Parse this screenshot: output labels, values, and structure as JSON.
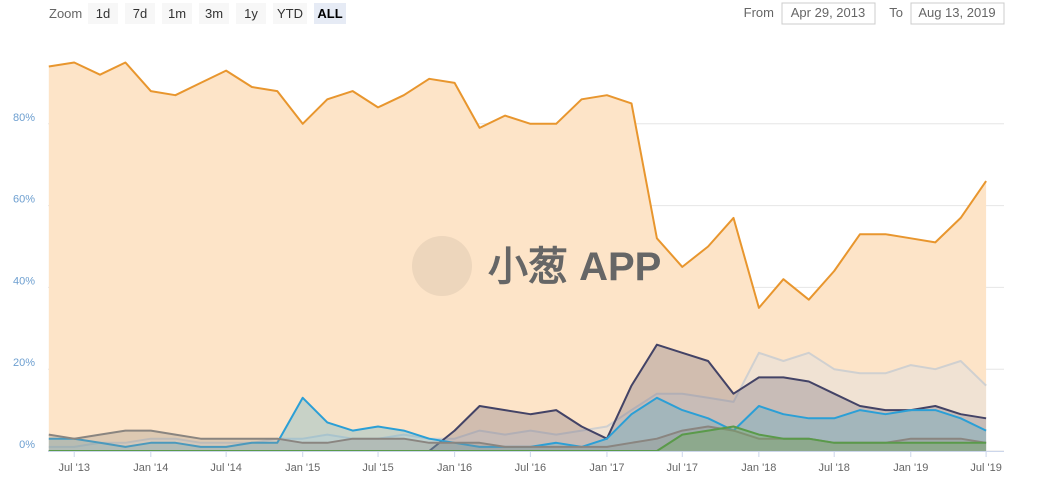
{
  "range_selector": {
    "zoom_label": "Zoom",
    "buttons": [
      "1d",
      "7d",
      "1m",
      "3m",
      "1y",
      "YTD",
      "ALL"
    ],
    "selected": 6,
    "from_label": "From",
    "from_value": "Apr 29, 2013",
    "to_label": "To",
    "to_value": "Aug 13, 2019"
  },
  "watermark": "小葱 APP",
  "chart_data": {
    "type": "area",
    "xlim": [
      "2013-04-29",
      "2019-08-13"
    ],
    "ylim": [
      0,
      100
    ],
    "yticks": [
      {
        "value": 0,
        "label": "0%"
      },
      {
        "value": 20,
        "label": "20%"
      },
      {
        "value": 40,
        "label": "40%"
      },
      {
        "value": 60,
        "label": "60%"
      },
      {
        "value": 80,
        "label": "80%"
      }
    ],
    "xticks": [
      {
        "value": "2013-07-01",
        "label": "Jul '13"
      },
      {
        "value": "2014-01-01",
        "label": "Jan '14"
      },
      {
        "value": "2014-07-01",
        "label": "Jul '14"
      },
      {
        "value": "2015-01-01",
        "label": "Jan '15"
      },
      {
        "value": "2015-07-01",
        "label": "Jul '15"
      },
      {
        "value": "2016-01-01",
        "label": "Jan '16"
      },
      {
        "value": "2016-07-01",
        "label": "Jul '16"
      },
      {
        "value": "2017-01-01",
        "label": "Jan '17"
      },
      {
        "value": "2017-07-01",
        "label": "Jul '17"
      },
      {
        "value": "2018-01-01",
        "label": "Jan '18"
      },
      {
        "value": "2018-07-01",
        "label": "Jul '18"
      },
      {
        "value": "2019-01-01",
        "label": "Jan '19"
      },
      {
        "value": "2019-07-01",
        "label": "Jul '19"
      }
    ],
    "grid": true,
    "x": [
      "2013-05",
      "2013-07",
      "2013-09",
      "2013-11",
      "2014-01",
      "2014-03",
      "2014-05",
      "2014-07",
      "2014-09",
      "2014-11",
      "2015-01",
      "2015-03",
      "2015-05",
      "2015-07",
      "2015-09",
      "2015-11",
      "2016-01",
      "2016-03",
      "2016-05",
      "2016-07",
      "2016-09",
      "2016-11",
      "2017-01",
      "2017-03",
      "2017-05",
      "2017-07",
      "2017-09",
      "2017-11",
      "2018-01",
      "2018-03",
      "2018-05",
      "2018-07",
      "2018-09",
      "2018-11",
      "2019-01",
      "2019-03",
      "2019-05",
      "2019-07"
    ],
    "series": [
      {
        "color": "#e8962e",
        "fill": "#fde4c8",
        "values": [
          94,
          95,
          92,
          95,
          88,
          87,
          90,
          93,
          89,
          88,
          80,
          86,
          88,
          84,
          87,
          91,
          90,
          79,
          82,
          80,
          80,
          86,
          87,
          85,
          52,
          45,
          50,
          57,
          35,
          42,
          37,
          44,
          53,
          53,
          52,
          51,
          57,
          66
        ]
      },
      {
        "color": "#d0d0d0",
        "fill": "rgba(225,225,225,0.45)",
        "values": [
          1,
          1,
          2,
          2,
          3,
          3,
          2,
          2,
          2,
          3,
          3,
          4,
          3,
          3,
          4,
          3,
          3,
          5,
          4,
          5,
          4,
          5,
          6,
          10,
          14,
          14,
          13,
          12,
          24,
          22,
          24,
          20,
          19,
          19,
          21,
          20,
          22,
          16
        ]
      },
      {
        "color": "#434366",
        "fill": "rgba(110,100,120,0.3)",
        "values": [
          0,
          0,
          0,
          0,
          0,
          0,
          0,
          0,
          0,
          0,
          0,
          0,
          0,
          0,
          0,
          0,
          5,
          11,
          10,
          9,
          10,
          6,
          3,
          16,
          26,
          24,
          22,
          14,
          18,
          18,
          17,
          14,
          11,
          10,
          10,
          11,
          9,
          8
        ]
      },
      {
        "color": "#2b9fd6",
        "fill": "rgba(80,170,200,0.3)",
        "values": [
          3,
          3,
          2,
          1,
          2,
          2,
          1,
          1,
          2,
          2,
          13,
          7,
          5,
          6,
          5,
          3,
          2,
          1,
          1,
          1,
          2,
          1,
          3,
          9,
          13,
          10,
          8,
          5,
          11,
          9,
          8,
          8,
          10,
          9,
          10,
          10,
          8,
          5
        ]
      },
      {
        "color": "#8a8580",
        "fill": "rgba(150,140,130,0.3)",
        "values": [
          4,
          3,
          4,
          5,
          5,
          4,
          3,
          3,
          3,
          3,
          2,
          2,
          3,
          3,
          3,
          2,
          2,
          2,
          1,
          1,
          1,
          1,
          1,
          2,
          3,
          5,
          6,
          5,
          3,
          3,
          3,
          2,
          2,
          2,
          3,
          3,
          3,
          2
        ]
      },
      {
        "color": "#5a9a4a",
        "fill": "rgba(110,170,90,0.35)",
        "values": [
          0,
          0,
          0,
          0,
          0,
          0,
          0,
          0,
          0,
          0,
          0,
          0,
          0,
          0,
          0,
          0,
          0,
          0,
          0,
          0,
          0,
          0,
          0,
          0,
          0,
          4,
          5,
          6,
          4,
          3,
          3,
          2,
          2,
          2,
          2,
          2,
          2,
          2
        ]
      }
    ]
  }
}
